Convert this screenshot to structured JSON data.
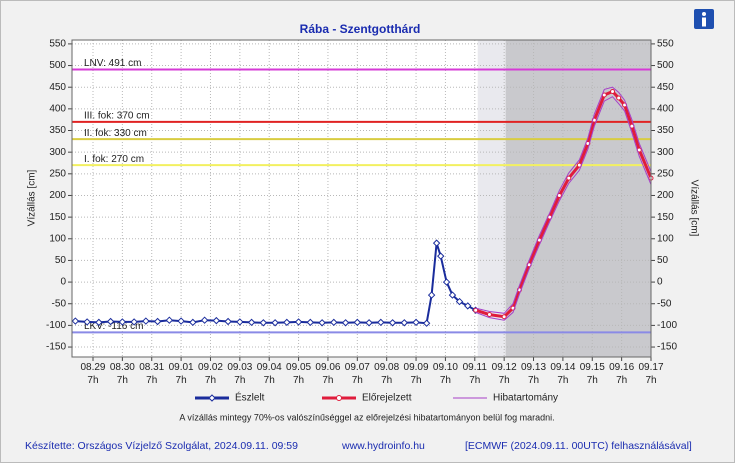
{
  "chart_data": {
    "type": "line",
    "title": "Rába - Szentgotthárd",
    "ylabel": "Vízállás [cm]",
    "y2label": "Vízállás [cm]",
    "xlim": [
      -0.715,
      19
    ],
    "ylim": [
      -173,
      559
    ],
    "yticks": [
      -150,
      -100,
      -50,
      0,
      50,
      100,
      150,
      200,
      250,
      300,
      350,
      400,
      450,
      500,
      550
    ],
    "grid": true,
    "xticks": [
      {
        "value": 0,
        "label": "08.29 7h"
      },
      {
        "value": 1,
        "label": "08.30 7h"
      },
      {
        "value": 2,
        "label": "08.31 7h"
      },
      {
        "value": 3,
        "label": "09.01 7h"
      },
      {
        "value": 4,
        "label": "09.02 7h"
      },
      {
        "value": 5,
        "label": "09.03 7h"
      },
      {
        "value": 6,
        "label": "09.04 7h"
      },
      {
        "value": 7,
        "label": "09.05 7h"
      },
      {
        "value": 8,
        "label": "09.06 7h"
      },
      {
        "value": 9,
        "label": "09.07 7h"
      },
      {
        "value": 10,
        "label": "09.08 7h"
      },
      {
        "value": 11,
        "label": "09.09 7h"
      },
      {
        "value": 12,
        "label": "09.10 7h"
      },
      {
        "value": 13,
        "label": "09.11 7h"
      },
      {
        "value": 14,
        "label": "09.12 7h"
      },
      {
        "value": 15,
        "label": "09.13 7h"
      },
      {
        "value": 16,
        "label": "09.14 7h"
      },
      {
        "value": 17,
        "label": "09.15 7h"
      },
      {
        "value": 18,
        "label": "09.16 7h"
      },
      {
        "value": 19,
        "label": "09.17 7h"
      }
    ],
    "regions": [
      {
        "from": 13.1,
        "to": 14.05,
        "color": "#e9e9ee"
      },
      {
        "from": 14.05,
        "to": 19,
        "color": "#c9c9cd"
      }
    ],
    "thresholds": [
      {
        "label": "LNV: 491 cm",
        "value": 491,
        "color": "#d63ad6"
      },
      {
        "label": "III. fok: 370 cm",
        "value": 370,
        "color": "#e02222"
      },
      {
        "label": "II. fok: 330 cm",
        "value": 330,
        "color": "#d8cc40"
      },
      {
        "label": "I. fok: 270 cm",
        "value": 270,
        "color": "#f2f060"
      },
      {
        "label": "LKV: -116 cm",
        "value": -116,
        "color": "#8a8ae6"
      }
    ],
    "series": [
      {
        "name": "Észlelt",
        "color": "#1a2c9c",
        "marker": "diamond",
        "x": [
          -0.6,
          -0.2,
          0.2,
          0.6,
          1.0,
          1.4,
          1.8,
          2.2,
          2.6,
          3.0,
          3.4,
          3.8,
          4.2,
          4.6,
          5.0,
          5.4,
          5.8,
          6.2,
          6.6,
          7.0,
          7.4,
          7.8,
          8.2,
          8.6,
          9.0,
          9.4,
          9.8,
          10.2,
          10.6,
          11.0,
          11.36,
          11.53,
          11.7,
          11.84,
          12.04,
          12.24,
          12.48,
          12.76,
          13.03
        ],
        "values": [
          -90,
          -92,
          -93,
          -91,
          -92,
          -92,
          -90,
          -91,
          -88,
          -90,
          -93,
          -88,
          -89,
          -91,
          -92,
          -93,
          -94,
          -94,
          -93,
          -92,
          -93,
          -94,
          -93,
          -94,
          -93,
          -94,
          -93,
          -94,
          -94,
          -93,
          -95,
          -30,
          90,
          60,
          0,
          -30,
          -45,
          -55,
          -65
        ]
      },
      {
        "name": "Előrejelzett",
        "color": "#e01c3c",
        "marker": "circle",
        "x": [
          13.03,
          13.5,
          14.0,
          14.3,
          14.52,
          14.85,
          15.2,
          15.55,
          15.88,
          16.2,
          16.56,
          16.85,
          17.07,
          17.41,
          17.69,
          17.9,
          18.1,
          18.35,
          18.6,
          19.0
        ],
        "values": [
          -65,
          -75,
          -80,
          -60,
          -18,
          40,
          97,
          150,
          200,
          240,
          270,
          320,
          374,
          432,
          440,
          425,
          409,
          360,
          305,
          240
        ]
      },
      {
        "name": "Hibatartomány",
        "color": "#a640c8",
        "marker": "none",
        "x": [
          13.03,
          13.5,
          14.0,
          14.3,
          14.52,
          14.85,
          15.2,
          15.55,
          15.88,
          16.2,
          16.56,
          16.85,
          17.07,
          17.41,
          17.69,
          17.9,
          18.1,
          18.35,
          18.6,
          19.0
        ],
        "values": [
          -60,
          -68,
          -72,
          -50,
          -8,
          50,
          108,
          160,
          212,
          252,
          282,
          333,
          388,
          445,
          450,
          438,
          420,
          375,
          320,
          255
        ],
        "lower": [
          -70,
          -82,
          -88,
          -70,
          -28,
          30,
          86,
          140,
          188,
          228,
          258,
          307,
          360,
          418,
          428,
          412,
          395,
          345,
          290,
          225
        ]
      }
    ],
    "note": "A vízállás mintegy 70%-os valószínűséggel az előrejelzési hibatartományon belül fog maradni.",
    "credits": [
      "Készítette: Országos Vízjelző Szolgálat, 2024.09.11. 09:59",
      "www.hydroinfo.hu",
      "[ECMWF (2024.09.11. 00UTC) felhasználásával]"
    ]
  }
}
